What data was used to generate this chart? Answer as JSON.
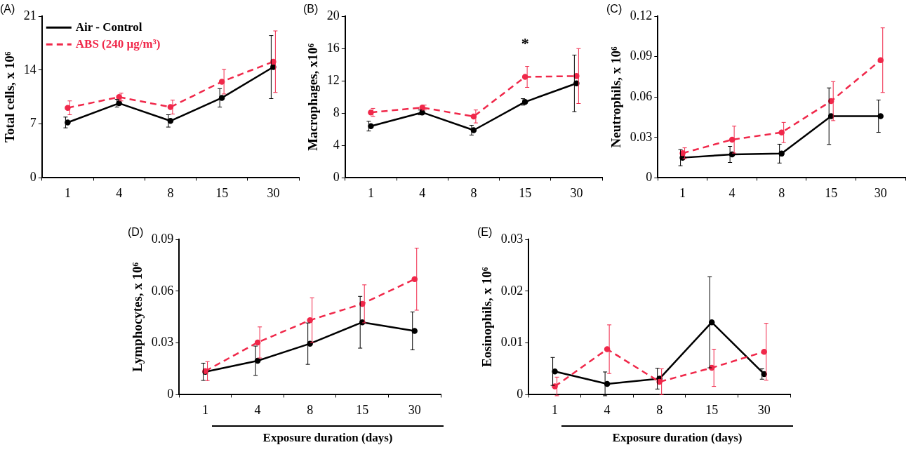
{
  "chart_data": [
    {
      "type": "line",
      "title": "(A)",
      "ylabel": "Total cells, x 10⁶",
      "categories": [
        "1",
        "4",
        "8",
        "15",
        "30"
      ],
      "ylim": [
        0,
        21
      ],
      "yticks": [
        0,
        7,
        14,
        21
      ],
      "grid": false,
      "legend": "top left",
      "marker": "circle",
      "series": [
        {
          "name": "Air - Control",
          "color": "#000000",
          "line_style": "solid",
          "values": [
            7.2,
            9.7,
            7.4,
            10.4,
            14.4
          ],
          "errors": [
            0.7,
            0.5,
            0.8,
            1.2,
            4.1
          ]
        },
        {
          "name": "ABS (240 µg/m³)",
          "color": "#f0284a",
          "line_style": "dashed",
          "values": [
            9.1,
            10.5,
            9.2,
            12.5,
            15.1
          ],
          "errors": [
            0.9,
            0.5,
            0.9,
            1.6,
            4.0
          ]
        }
      ]
    },
    {
      "type": "line",
      "title": "(B)",
      "ylabel": "Macrophages, x10⁶",
      "categories": [
        "1",
        "4",
        "8",
        "15",
        "30"
      ],
      "ylim": [
        0,
        20
      ],
      "yticks": [
        0,
        4,
        8,
        12,
        16,
        20
      ],
      "grid": false,
      "marker": "circle",
      "annotations": [
        {
          "text": "*",
          "x": "15",
          "y": 12.5
        }
      ],
      "series": [
        {
          "color": "#000000",
          "line_style": "solid",
          "values": [
            6.4,
            8.1,
            5.9,
            9.4,
            11.7
          ],
          "errors": [
            0.6,
            0.3,
            0.6,
            0.4,
            3.5
          ]
        },
        {
          "color": "#f0284a",
          "line_style": "dashed",
          "values": [
            8.1,
            8.7,
            7.6,
            12.5,
            12.6
          ],
          "errors": [
            0.5,
            0.3,
            0.8,
            1.3,
            3.4
          ]
        }
      ]
    },
    {
      "type": "line",
      "title": "(C)",
      "ylabel": "Neutrophils, x 10⁶",
      "categories": [
        "1",
        "4",
        "8",
        "15",
        "30"
      ],
      "ylim": [
        0,
        0.12
      ],
      "yticks": [
        0,
        0.03,
        0.06,
        0.09,
        0.12
      ],
      "grid": false,
      "marker": "circle",
      "series": [
        {
          "color": "#000000",
          "line_style": "solid",
          "values": [
            0.015,
            0.0174,
            0.018,
            0.0458,
            0.0458
          ],
          "errors": [
            0.006,
            0.006,
            0.007,
            0.021,
            0.012
          ]
        },
        {
          "color": "#f0284a",
          "line_style": "dashed",
          "values": [
            0.0183,
            0.0284,
            0.0337,
            0.057,
            0.0874
          ],
          "errors": [
            0.004,
            0.01,
            0.0075,
            0.0145,
            0.024
          ]
        }
      ]
    },
    {
      "type": "line",
      "title": "(D)",
      "ylabel": "Lymphocytes, x 10⁶",
      "xlabel": "Exposure duration (days)",
      "categories": [
        "1",
        "4",
        "8",
        "15",
        "30"
      ],
      "ylim": [
        0,
        0.09
      ],
      "yticks": [
        0,
        0.03,
        0.06,
        0.09
      ],
      "grid": false,
      "marker": "circle",
      "series": [
        {
          "color": "#000000",
          "line_style": "solid",
          "values": [
            0.0133,
            0.0197,
            0.0296,
            0.042,
            0.037
          ],
          "errors": [
            0.005,
            0.0085,
            0.012,
            0.015,
            0.011
          ]
        },
        {
          "color": "#f0284a",
          "line_style": "dashed",
          "values": [
            0.0137,
            0.0303,
            0.0432,
            0.0527,
            0.067
          ],
          "errors": [
            0.0055,
            0.009,
            0.013,
            0.011,
            0.018
          ]
        }
      ]
    },
    {
      "type": "line",
      "title": "(E)",
      "ylabel": "Eosinophils, x 10⁶",
      "xlabel": "Exposure duration (days)",
      "categories": [
        "1",
        "4",
        "8",
        "15",
        "30"
      ],
      "ylim": [
        0,
        0.03
      ],
      "yticks": [
        0,
        0.01,
        0.02,
        0.03
      ],
      "grid": false,
      "marker": "circle",
      "series": [
        {
          "color": "#000000",
          "line_style": "solid",
          "values": [
            0.0045,
            0.0021,
            0.0031,
            0.014,
            0.004
          ],
          "errors": [
            0.0027,
            0.0023,
            0.002,
            0.0088,
            0.001
          ]
        },
        {
          "color": "#f0284a",
          "line_style": "dashed",
          "values": [
            0.0016,
            0.0088,
            0.0025,
            0.0052,
            0.0083
          ],
          "errors": [
            0.0018,
            0.0047,
            0.0025,
            0.0036,
            0.0055
          ]
        }
      ]
    }
  ]
}
